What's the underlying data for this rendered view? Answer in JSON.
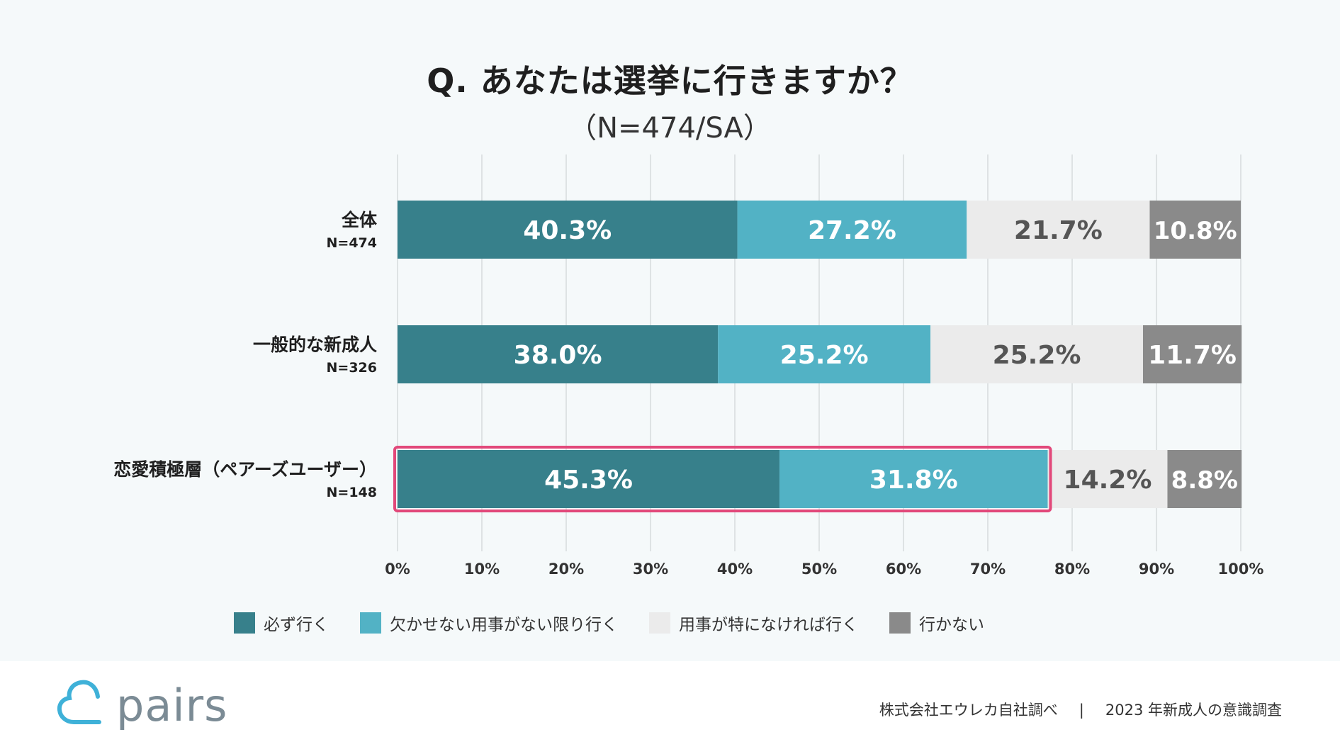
{
  "title": "Q. あなたは選挙に行きますか？",
  "subtitle": "（N=474/SA）",
  "chart_data": {
    "type": "bar",
    "orientation": "horizontal-stacked-100",
    "xlim": [
      0,
      100
    ],
    "x_ticks": [
      "0%",
      "10%",
      "20%",
      "30%",
      "40%",
      "50%",
      "60%",
      "70%",
      "80%",
      "90%",
      "100%"
    ],
    "categories": [
      {
        "label": "全体",
        "n": "N=474"
      },
      {
        "label": "一般的な新成人",
        "n": "N=326"
      },
      {
        "label": "恋愛積極層（ペアーズユーザー）",
        "n": "N=148",
        "highlight_segments": 2
      }
    ],
    "series": [
      {
        "name": "必ず行く",
        "color": "#37808b",
        "label_color": "#ffffff",
        "values": [
          40.3,
          38.0,
          45.3
        ]
      },
      {
        "name": "欠かせない用事がない限り行く",
        "color": "#52b2c5",
        "label_color": "#ffffff",
        "values": [
          27.2,
          25.2,
          31.8
        ]
      },
      {
        "name": "用事が特になければ行く",
        "color": "#ebebeb",
        "label_color": "#555555",
        "values": [
          21.7,
          25.2,
          14.2
        ]
      },
      {
        "name": "行かない",
        "color": "#8a8a8a",
        "label_color": "#ffffff",
        "values": [
          10.8,
          11.7,
          8.8
        ]
      }
    ],
    "highlight_color": "#e2487a",
    "grid": true
  },
  "logo": {
    "text": "pairs",
    "icon": "cloud-icon",
    "color": "#3fb1d8"
  },
  "footer": {
    "source": "株式会社エウレカ自社調べ",
    "separator": "|",
    "survey": "2023 年新成人の意識調査"
  }
}
